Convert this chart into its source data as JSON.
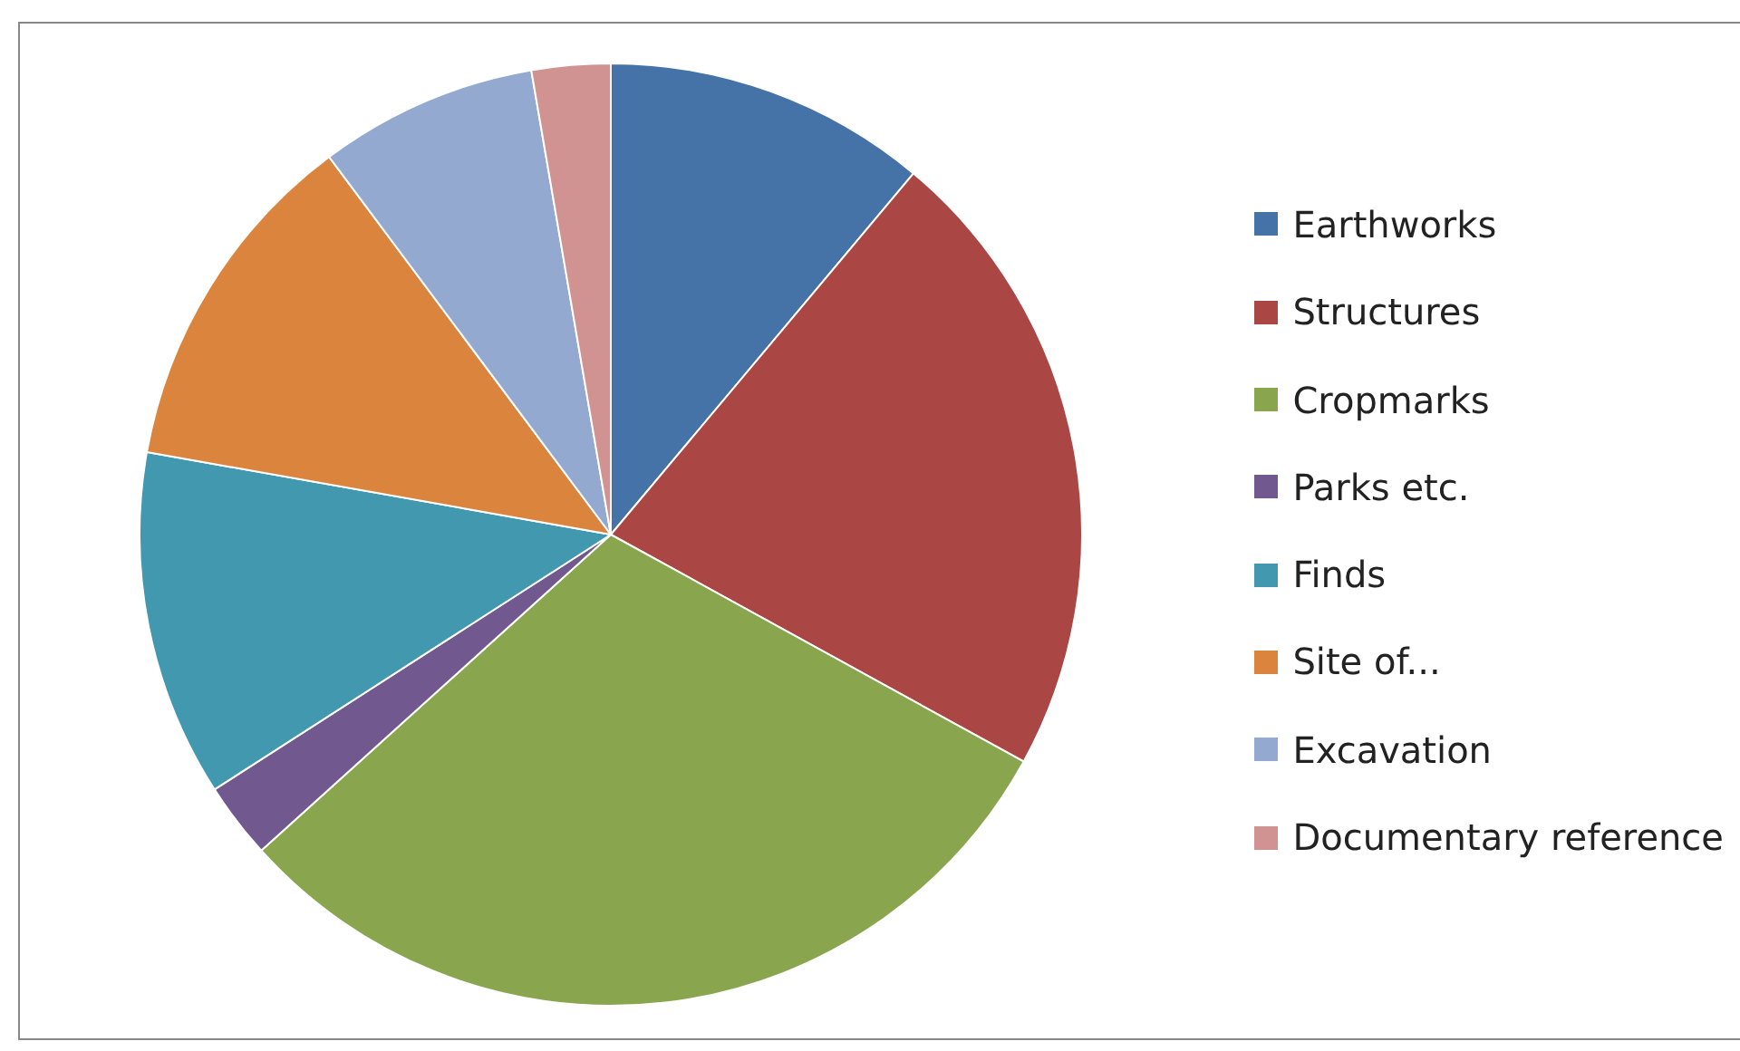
{
  "chart_data": {
    "type": "pie",
    "categories": [
      "Earthworks",
      "Structures",
      "Cropmarks",
      "Parks etc.",
      "Finds",
      "Site of...",
      "Excavation",
      "Documentary reference"
    ],
    "values": [
      11.1,
      21.9,
      30.3,
      2.6,
      11.9,
      12.0,
      7.5,
      2.7
    ],
    "colors": [
      "#4572a7",
      "#aa4643",
      "#89a54e",
      "#71588f",
      "#4198af",
      "#db843d",
      "#93a9cf",
      "#d19392"
    ],
    "legend": "right"
  }
}
